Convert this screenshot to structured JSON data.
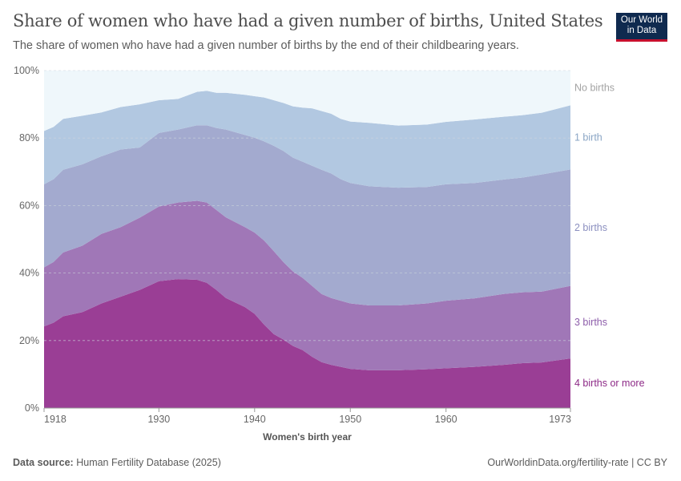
{
  "header": {
    "title": "Share of women who have had a given number of births, United States",
    "subtitle": "The share of women who have had a given number of births by the end of their childbearing years.",
    "logo": [
      "Our World",
      "in Data"
    ]
  },
  "footer": {
    "source_label": "Data source:",
    "source": "Human Fertility Database (2025)",
    "link": "OurWorldinData.org/fertility-rate | CC BY"
  },
  "chart_data": {
    "type": "area",
    "stacked": true,
    "xlabel": "Women's birth year",
    "ylabel": "",
    "xlim": [
      1918,
      1973
    ],
    "ylim": [
      0,
      100
    ],
    "xticks": [
      "1918",
      "1930",
      "1940",
      "1950",
      "1960",
      "1973"
    ],
    "yticks": [
      "0%",
      "20%",
      "40%",
      "60%",
      "80%",
      "100%"
    ],
    "grid": "horizontal dashed",
    "legend": "right (inline labels)",
    "x": [
      1918,
      1919,
      1920,
      1922,
      1924,
      1926,
      1928,
      1930,
      1932,
      1934,
      1935,
      1936,
      1937,
      1939,
      1940,
      1941,
      1942,
      1943,
      1944,
      1945,
      1946,
      1947,
      1948,
      1949,
      1950,
      1952,
      1955,
      1958,
      1960,
      1963,
      1966,
      1968,
      1970,
      1973
    ],
    "series": [
      {
        "name": "4 births or more",
        "color": "#9a3e95",
        "label_color": "#8d2a87",
        "values": [
          24.2,
          25.3,
          27.2,
          28.4,
          31.0,
          33.0,
          35.0,
          37.6,
          38.2,
          38.0,
          37.1,
          35.0,
          32.6,
          29.9,
          27.9,
          24.7,
          21.9,
          20.3,
          18.4,
          17.2,
          15.2,
          13.6,
          12.8,
          12.2,
          11.6,
          11.2,
          11.2,
          11.5,
          11.8,
          12.2,
          12.8,
          13.3,
          13.5,
          14.7
        ]
      },
      {
        "name": "3 births",
        "color": "#a077b7",
        "label_color": "#8e5eab",
        "values": [
          17.5,
          18.0,
          18.9,
          19.7,
          20.6,
          20.6,
          21.4,
          22.1,
          22.7,
          23.4,
          23.8,
          23.7,
          23.9,
          23.7,
          24.1,
          24.9,
          24.6,
          23.0,
          22.1,
          21.4,
          21.0,
          20.2,
          19.8,
          19.6,
          19.4,
          19.2,
          19.2,
          19.5,
          20.0,
          20.3,
          21.0,
          21.0,
          21.0,
          21.5
        ]
      },
      {
        "name": "2 births",
        "color": "#a3aacf",
        "label_color": "#8c90c0",
        "values": [
          24.6,
          24.5,
          24.5,
          24.1,
          23.0,
          23.0,
          20.8,
          21.8,
          21.6,
          22.4,
          22.9,
          24.3,
          26.0,
          27.3,
          28.1,
          29.4,
          31.2,
          32.9,
          33.7,
          34.4,
          35.6,
          36.8,
          36.9,
          36.0,
          35.7,
          35.3,
          34.9,
          34.5,
          34.5,
          34.2,
          33.9,
          34.0,
          34.7,
          34.5
        ]
      },
      {
        "name": "1 birth",
        "color": "#b2c8e1",
        "label_color": "#8aa5c5",
        "values": [
          15.8,
          15.5,
          15.1,
          14.4,
          13.0,
          12.6,
          12.8,
          9.7,
          9.1,
          9.9,
          10.2,
          10.4,
          10.9,
          11.9,
          12.3,
          13.0,
          13.5,
          14.2,
          15.2,
          16.0,
          17.0,
          17.4,
          17.7,
          17.9,
          18.2,
          18.8,
          18.4,
          18.5,
          18.5,
          18.8,
          18.6,
          18.5,
          18.3,
          19.0
        ]
      },
      {
        "name": "No births",
        "color": "#eff7fb",
        "label_color": "#a3a3a3",
        "values": [
          17.9,
          16.7,
          14.3,
          13.4,
          12.4,
          10.8,
          10.0,
          8.8,
          8.4,
          6.3,
          6.0,
          6.6,
          6.6,
          7.2,
          7.6,
          8.0,
          8.8,
          9.6,
          10.6,
          11.0,
          11.2,
          12.0,
          12.8,
          14.3,
          15.1,
          15.5,
          16.3,
          16.0,
          15.2,
          14.5,
          13.7,
          13.2,
          12.5,
          10.3
        ]
      }
    ]
  }
}
